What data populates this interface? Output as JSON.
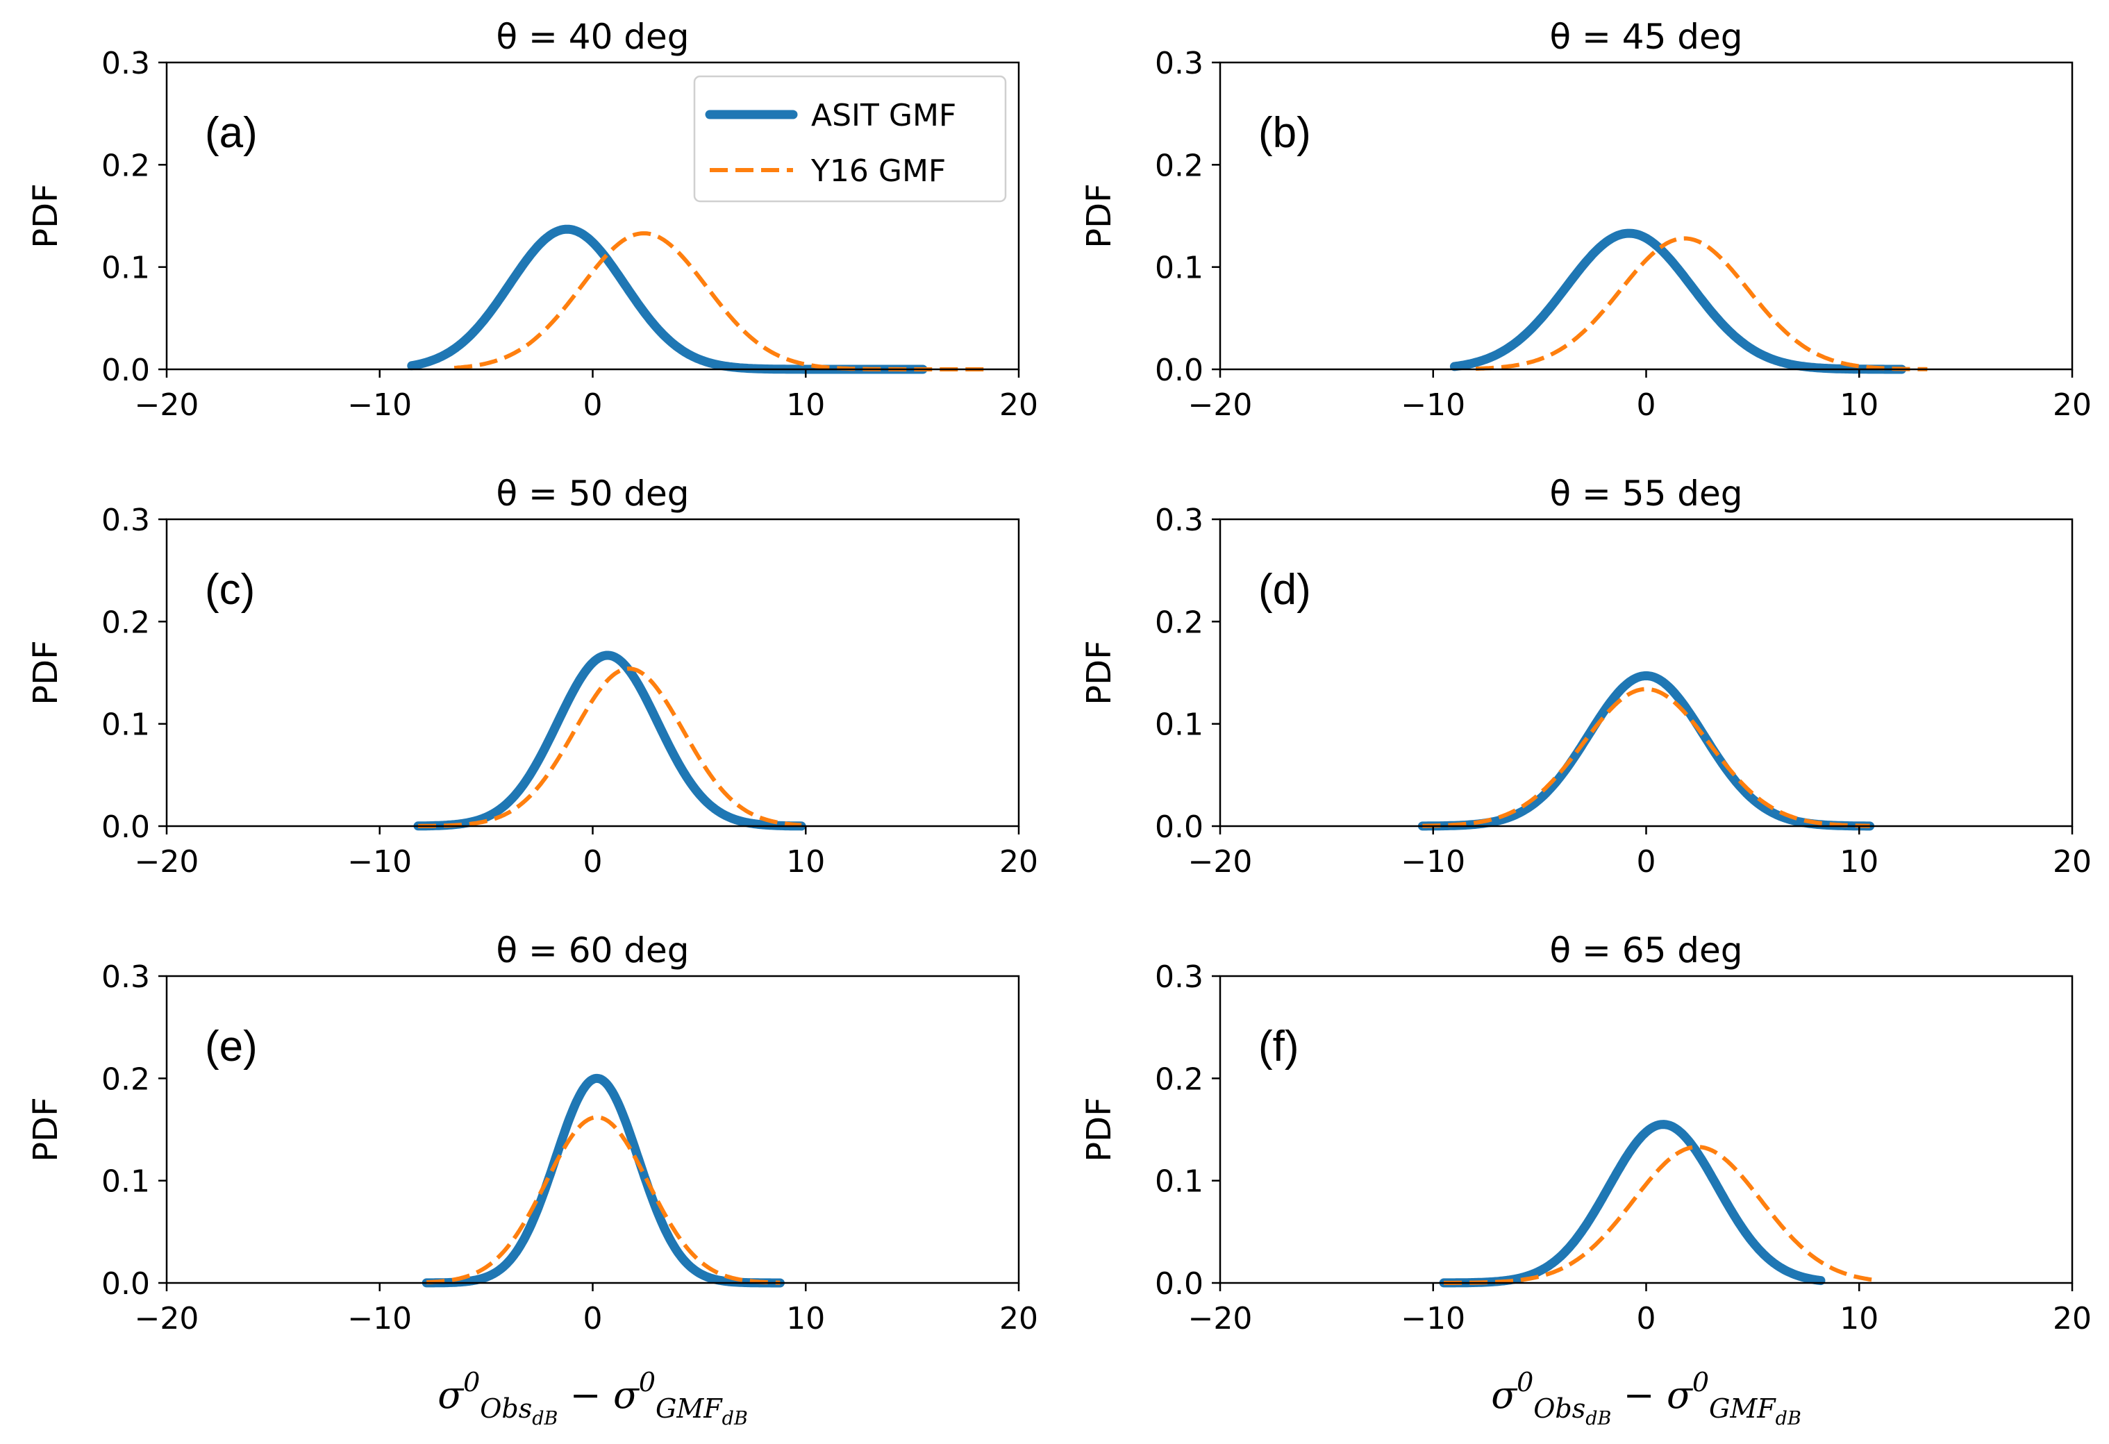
{
  "colors": {
    "asit": "#1f77b4",
    "y16": "#ff7f0e"
  },
  "chart_data": {
    "type": "line",
    "layout": "3x2 grid of subplots",
    "ylabel": "PDF",
    "xlabel_parts": {
      "sigma": "σ",
      "sup": "0",
      "obs": "Obs",
      "gmf": "GMF",
      "db": "dB",
      "minus": "−"
    },
    "xlim": [
      -20,
      20
    ],
    "ylim": [
      0,
      0.3
    ],
    "xticks": [
      -20,
      -10,
      0,
      10,
      20
    ],
    "xtick_labels": [
      "−20",
      "−10",
      "0",
      "10",
      "20"
    ],
    "yticks": [
      0.0,
      0.1,
      0.2,
      0.3
    ],
    "ytick_labels": [
      "0.0",
      "0.1",
      "0.2",
      "0.3"
    ],
    "legend": {
      "location": "upper-right of panel (a)",
      "entries": [
        {
          "label": "ASIT GMF",
          "style": "solid thick blue"
        },
        {
          "label": "Y16 GMF",
          "style": "dashed orange"
        }
      ]
    },
    "panels": [
      {
        "letter": "(a)",
        "title": "θ = 40 deg",
        "series": [
          {
            "name": "ASIT GMF",
            "mean": -1.2,
            "sd": 2.7,
            "peak": 0.137,
            "range": [
              -8.5,
              15.5
            ]
          },
          {
            "name": "Y16 GMF",
            "mean": 2.4,
            "sd": 2.95,
            "peak": 0.133,
            "range": [
              -6.5,
              18.5
            ]
          }
        ]
      },
      {
        "letter": "(b)",
        "title": "θ = 45 deg",
        "series": [
          {
            "name": "ASIT GMF",
            "mean": -0.8,
            "sd": 2.95,
            "peak": 0.133,
            "range": [
              -9,
              12
            ]
          },
          {
            "name": "Y16 GMF",
            "mean": 1.8,
            "sd": 3.0,
            "peak": 0.128,
            "range": [
              -8,
              13.2
            ]
          }
        ]
      },
      {
        "letter": "(c)",
        "title": "θ = 50 deg",
        "series": [
          {
            "name": "ASIT GMF",
            "mean": 0.7,
            "sd": 2.35,
            "peak": 0.167,
            "range": [
              -8.2,
              9.8
            ]
          },
          {
            "name": "Y16 GMF",
            "mean": 1.7,
            "sd": 2.55,
            "peak": 0.154,
            "range": [
              -8.2,
              9.8
            ]
          }
        ]
      },
      {
        "letter": "(d)",
        "title": "θ = 55 deg",
        "series": [
          {
            "name": "ASIT GMF",
            "mean": 0.0,
            "sd": 2.7,
            "peak": 0.147,
            "range": [
              -10.5,
              10.5
            ]
          },
          {
            "name": "Y16 GMF",
            "mean": 0.0,
            "sd": 2.95,
            "peak": 0.134,
            "range": [
              -10.5,
              10.5
            ]
          }
        ]
      },
      {
        "letter": "(e)",
        "title": "θ = 60 deg",
        "series": [
          {
            "name": "ASIT GMF",
            "mean": 0.2,
            "sd": 1.95,
            "peak": 0.2,
            "range": [
              -7.8,
              8.8
            ]
          },
          {
            "name": "Y16 GMF",
            "mean": 0.2,
            "sd": 2.4,
            "peak": 0.162,
            "range": [
              -7.8,
              8.8
            ]
          }
        ]
      },
      {
        "letter": "(f)",
        "title": "θ = 65 deg",
        "series": [
          {
            "name": "ASIT GMF",
            "mean": 0.8,
            "sd": 2.55,
            "peak": 0.155,
            "range": [
              -9.5,
              8.2
            ]
          },
          {
            "name": "Y16 GMF",
            "mean": 2.4,
            "sd": 3.0,
            "peak": 0.133,
            "range": [
              -9.5,
              10.6
            ]
          }
        ]
      }
    ]
  }
}
